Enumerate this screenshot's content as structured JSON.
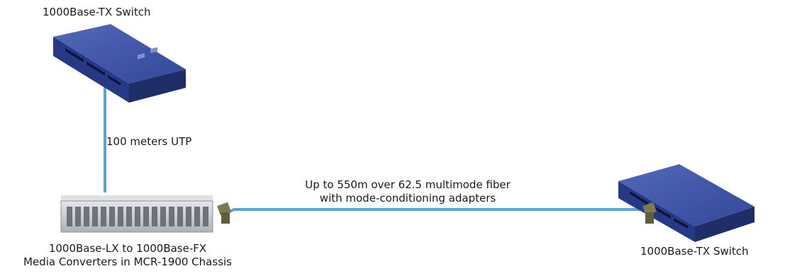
{
  "labels": {
    "top_switch": "1000Base-TX Switch",
    "utp_link": "100 meters UTP",
    "fiber_link_line1": "Up to 550m over 62.5 multimode fiber",
    "fiber_link_line2": "with mode-conditioning adapters",
    "chassis_line1": "1000Base-LX to 1000Base-FX",
    "chassis_line2": "Media Converters in MCR-1900 Chassis",
    "right_switch": "1000Base-TX Switch"
  },
  "colors": {
    "cable": "#5ba4d4",
    "switch_top": "#3f54a6",
    "switch_side": "#1f2d68",
    "switch_front": "#263886",
    "chassis_body": "#c9ccd1",
    "chassis_front": "#8f949b",
    "adapter": "#7b7a52"
  }
}
